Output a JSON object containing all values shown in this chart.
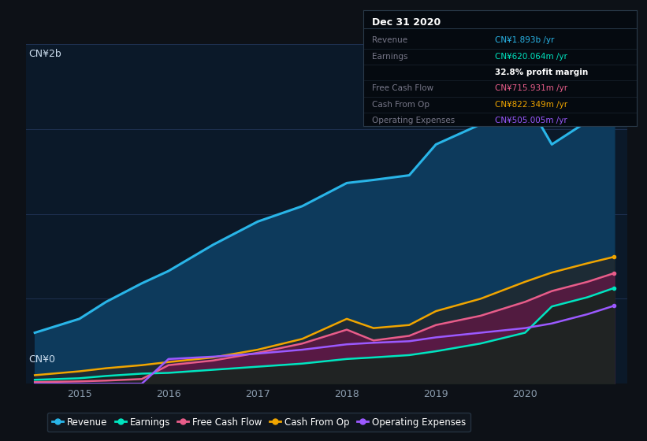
{
  "background_color": "#0d1117",
  "plot_bg_color": "#0b1929",
  "title": "Dec 31 2020",
  "ylabel_top": "CN¥2b",
  "ylabel_bottom": "CN¥0",
  "years": [
    2014.5,
    2015.0,
    2015.3,
    2015.7,
    2016.0,
    2016.5,
    2017.0,
    2017.5,
    2018.0,
    2018.3,
    2018.7,
    2019.0,
    2019.5,
    2020.0,
    2020.3,
    2020.7,
    2021.0
  ],
  "revenue": [
    330,
    420,
    530,
    650,
    730,
    900,
    1050,
    1150,
    1300,
    1320,
    1350,
    1550,
    1680,
    1850,
    1550,
    1700,
    1893
  ],
  "earnings": [
    25,
    35,
    50,
    65,
    70,
    90,
    110,
    130,
    160,
    170,
    185,
    210,
    260,
    330,
    500,
    560,
    620
  ],
  "free_cash_flow": [
    10,
    15,
    20,
    30,
    120,
    150,
    200,
    260,
    350,
    280,
    310,
    380,
    440,
    530,
    600,
    660,
    716
  ],
  "cash_from_op": [
    55,
    80,
    100,
    120,
    140,
    170,
    220,
    290,
    420,
    360,
    380,
    470,
    550,
    660,
    720,
    780,
    822
  ],
  "operating_expenses": [
    0,
    0,
    0,
    0,
    160,
    175,
    195,
    220,
    255,
    265,
    275,
    300,
    330,
    360,
    390,
    450,
    505
  ],
  "revenue_color": "#29b5e8",
  "earnings_color": "#00e5c0",
  "free_cash_flow_color": "#e85d8a",
  "cash_from_op_color": "#f0a500",
  "operating_expenses_color": "#9b59ff",
  "revenue_fill": "#0d3a5c",
  "earnings_fill": "#1a3a30",
  "free_cash_flow_fill": "#7a2555",
  "cash_from_op_fill": "#2a1a00",
  "operating_expenses_fill_top": "#6a3aaa",
  "operating_expenses_fill_bot": "#3a2070",
  "info_box": {
    "title": "Dec 31 2020",
    "title_color": "#ffffff",
    "bg_color": "#050a10",
    "border_color": "#2a3a4a",
    "label_color": "#777788",
    "rows": [
      {
        "label": "Revenue",
        "value": "CN¥1.893b /yr",
        "value_color": "#29b5e8"
      },
      {
        "label": "Earnings",
        "value": "CN¥620.064m /yr",
        "value_color": "#00e5c0"
      },
      {
        "label": "",
        "value": "32.8% profit margin",
        "value_color": "#ffffff",
        "bold": true
      },
      {
        "label": "Free Cash Flow",
        "value": "CN¥715.931m /yr",
        "value_color": "#e85d8a"
      },
      {
        "label": "Cash From Op",
        "value": "CN¥822.349m /yr",
        "value_color": "#f0a500"
      },
      {
        "label": "Operating Expenses",
        "value": "CN¥505.005m /yr",
        "value_color": "#9b59ff"
      }
    ]
  },
  "legend": [
    {
      "label": "Revenue",
      "color": "#29b5e8"
    },
    {
      "label": "Earnings",
      "color": "#00e5c0"
    },
    {
      "label": "Free Cash Flow",
      "color": "#e85d8a"
    },
    {
      "label": "Cash From Op",
      "color": "#f0a500"
    },
    {
      "label": "Operating Expenses",
      "color": "#9b59ff"
    }
  ],
  "xticks": [
    2015,
    2016,
    2017,
    2018,
    2019,
    2020
  ],
  "ylim": [
    0,
    2200
  ],
  "xlim": [
    2014.4,
    2021.15
  ]
}
